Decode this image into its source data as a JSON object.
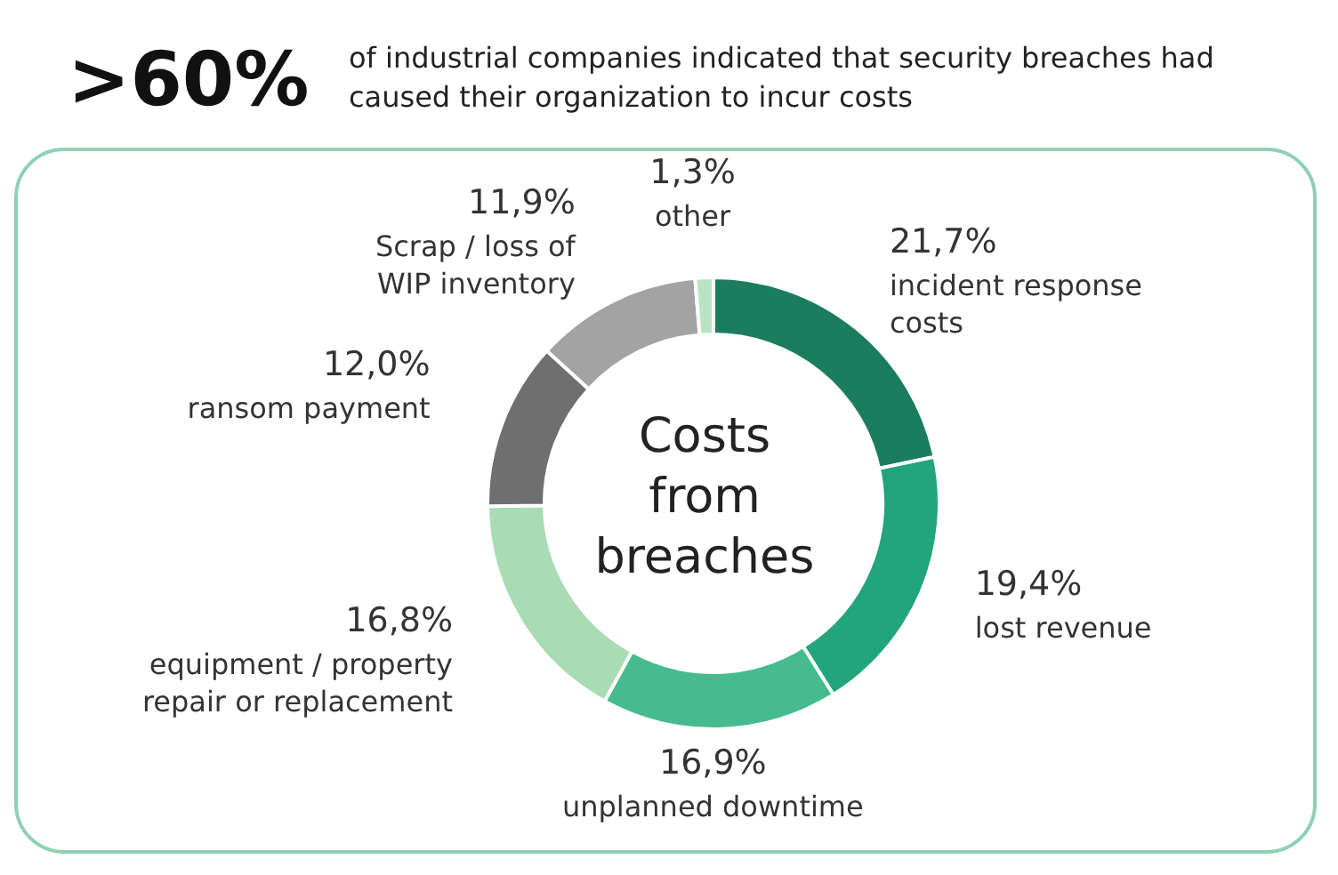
{
  "chart_data": {
    "type": "donut",
    "title": ">60%",
    "subtitle": "of industrial companies indicated that security breaches had caused their organization to incur costs",
    "categories": [
      "incident response\ncosts",
      "lost revenue",
      "unplanned downtime",
      "equipment / property\nrepair or replacement",
      "ransom payment",
      "Scrap / loss of\nWIP inventory",
      "other"
    ],
    "values": [
      21.7,
      19.4,
      16.9,
      16.8,
      12.0,
      11.9,
      1.3
    ],
    "value_labels": [
      "21,7%",
      "19,4%",
      "16,9%",
      "16,8%",
      "12,0%",
      "11,9%",
      "1,3%"
    ],
    "colors": [
      "#1b7d5e",
      "#22a47c",
      "#45bb8f",
      "#a9dcb4",
      "#6f6f6f",
      "#a3a3a3",
      "#b9e4c3"
    ],
    "annotations": [
      "Costs\nfrom\nbreaches"
    ]
  }
}
